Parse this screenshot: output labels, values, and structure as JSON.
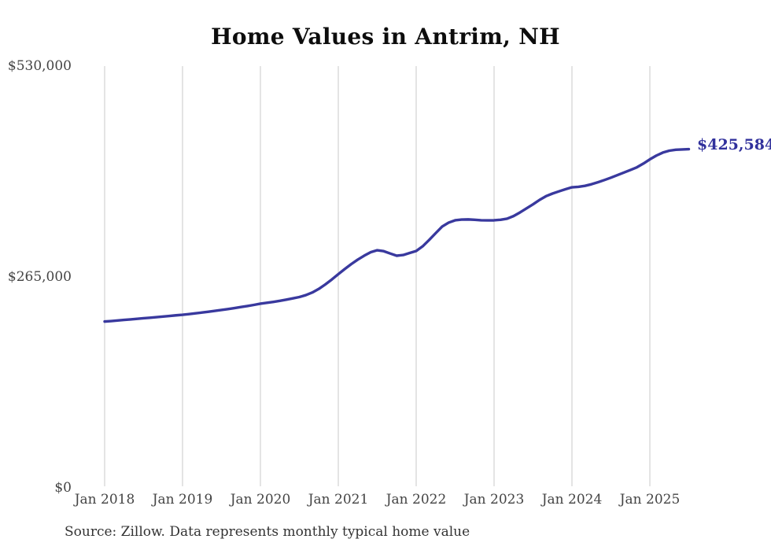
{
  "chart": {
    "title": "Home Values in Antrim, NH",
    "end_label": "$425,584",
    "source": "Source: Zillow. Data represents monthly typical home value"
  },
  "colors": {
    "line": "#39399e",
    "end_label_text": "#31319c",
    "gridline": "#c9c9c9",
    "axis_text": "#444444",
    "title_text": "#0d0d0d",
    "background": "#ffffff"
  },
  "chart_data": {
    "type": "line",
    "title": "Home Values in Antrim, NH",
    "series_name": "Monthly typical home value",
    "interval": "monthly",
    "start_month": "2018-01",
    "end_month": "2025-07",
    "values": [
      209000,
      209600,
      210300,
      211000,
      211700,
      212400,
      213100,
      213800,
      214500,
      215200,
      216000,
      216800,
      217500,
      218400,
      219300,
      220300,
      221300,
      222400,
      223500,
      224700,
      225900,
      227200,
      228500,
      229900,
      231400,
      232500,
      233700,
      235000,
      236500,
      238100,
      239800,
      242200,
      245500,
      250000,
      255600,
      261800,
      268500,
      275000,
      281200,
      286800,
      291800,
      296100,
      298600,
      297400,
      294500,
      291700,
      292600,
      295100,
      297600,
      303500,
      311500,
      320000,
      328300,
      333300,
      336200,
      337100,
      337300,
      336900,
      336300,
      336100,
      336200,
      336900,
      338200,
      341500,
      346100,
      351200,
      356300,
      361800,
      366500,
      369800,
      372600,
      375200,
      377700,
      378300,
      379500,
      381500,
      384000,
      386800,
      389800,
      393000,
      396200,
      399400,
      402800,
      407500,
      412800,
      417500,
      421300,
      423700,
      424900,
      425300,
      425584
    ],
    "latest_value": 425584,
    "latest_value_label": "$425,584",
    "x_tick_labels": [
      "Jan 2018",
      "Jan 2019",
      "Jan 2020",
      "Jan 2021",
      "Jan 2022",
      "Jan 2023",
      "Jan 2024",
      "Jan 2025"
    ],
    "y_tick_labels": [
      "$0",
      "$265,000",
      "$530,000"
    ],
    "y_tick_values": [
      0,
      265000,
      530000
    ],
    "ylim": [
      0,
      530000
    ],
    "grid": "vertical-only",
    "legend": "none",
    "source": "Source: Zillow. Data represents monthly typical home value"
  }
}
